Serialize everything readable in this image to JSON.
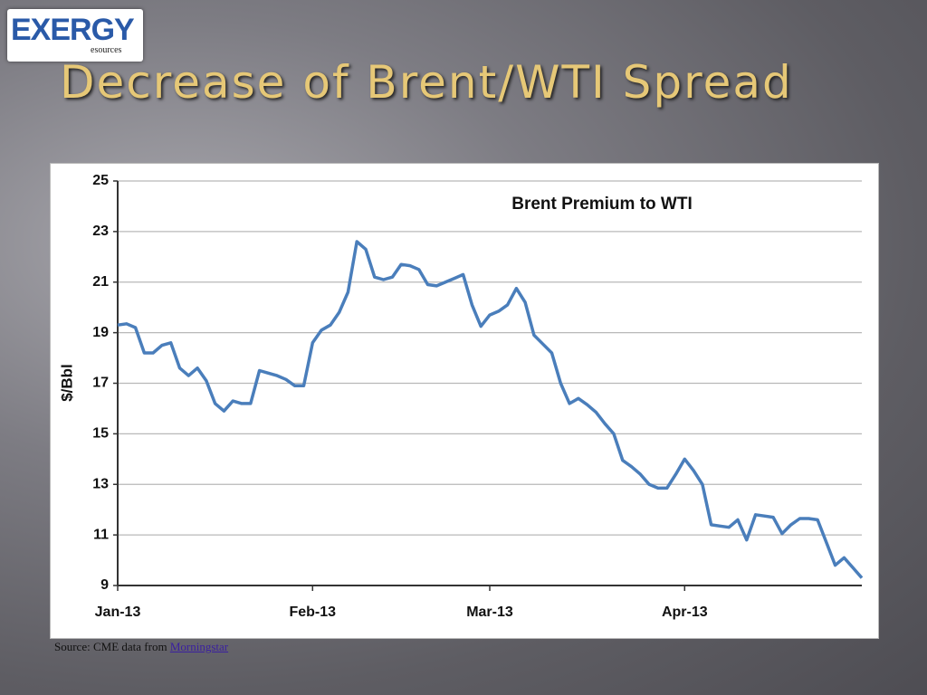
{
  "slide": {
    "logo": {
      "name": "EXERGY",
      "sub": "esources"
    },
    "title": "Decrease of Brent/WTI Spread",
    "source": {
      "text": "Source: CME data from",
      "link": "Morningstar"
    }
  },
  "chart_data": {
    "type": "line",
    "title": "Brent Premium to WTI",
    "y_label": "$/Bbl",
    "categories": [
      "Jan-13",
      null,
      null,
      null,
      null,
      null,
      null,
      null,
      null,
      null,
      null,
      null,
      null,
      null,
      null,
      null,
      null,
      null,
      null,
      null,
      null,
      null,
      "Feb-13",
      null,
      null,
      null,
      null,
      null,
      null,
      null,
      null,
      null,
      null,
      null,
      null,
      null,
      null,
      null,
      null,
      null,
      null,
      null,
      "Mar-13",
      null,
      null,
      null,
      null,
      null,
      null,
      null,
      null,
      null,
      null,
      null,
      null,
      null,
      null,
      null,
      null,
      null,
      null,
      null,
      null,
      null,
      "Apr-13",
      null,
      null,
      null,
      null,
      null,
      null,
      null,
      null,
      null,
      null,
      null,
      null,
      null,
      null,
      null,
      null,
      null,
      null,
      null,
      null
    ],
    "series": [
      {
        "name": "Brent Premium to WTI",
        "color": "#4a7ebb",
        "values": [
          19.3,
          19.35,
          19.2,
          18.2,
          18.2,
          18.5,
          18.6,
          17.6,
          17.3,
          17.6,
          17.1,
          16.2,
          15.9,
          16.3,
          16.2,
          16.2,
          17.5,
          17.4,
          17.3,
          17.15,
          16.9,
          16.9,
          18.6,
          19.1,
          19.3,
          19.8,
          20.6,
          22.6,
          22.3,
          21.2,
          21.1,
          21.2,
          21.7,
          21.65,
          21.5,
          20.9,
          20.85,
          21.0,
          21.15,
          21.3,
          20.1,
          19.25,
          19.7,
          19.85,
          20.1,
          20.75,
          20.2,
          18.9,
          18.55,
          18.2,
          17.0,
          16.2,
          16.4,
          16.15,
          15.85,
          15.4,
          15.0,
          13.95,
          13.7,
          13.4,
          13.0,
          12.85,
          12.85,
          13.4,
          14.0,
          13.55,
          13.0,
          11.4,
          11.35,
          11.3,
          11.6,
          10.8,
          11.8,
          11.75,
          11.7,
          11.05,
          11.4,
          11.65,
          11.65,
          11.6,
          10.7,
          9.8,
          10.1,
          9.7,
          9.3
        ]
      }
    ],
    "ylim": [
      9,
      25
    ],
    "yticks": [
      9,
      11,
      13,
      15,
      17,
      19,
      21,
      23,
      25
    ],
    "grid": true
  }
}
